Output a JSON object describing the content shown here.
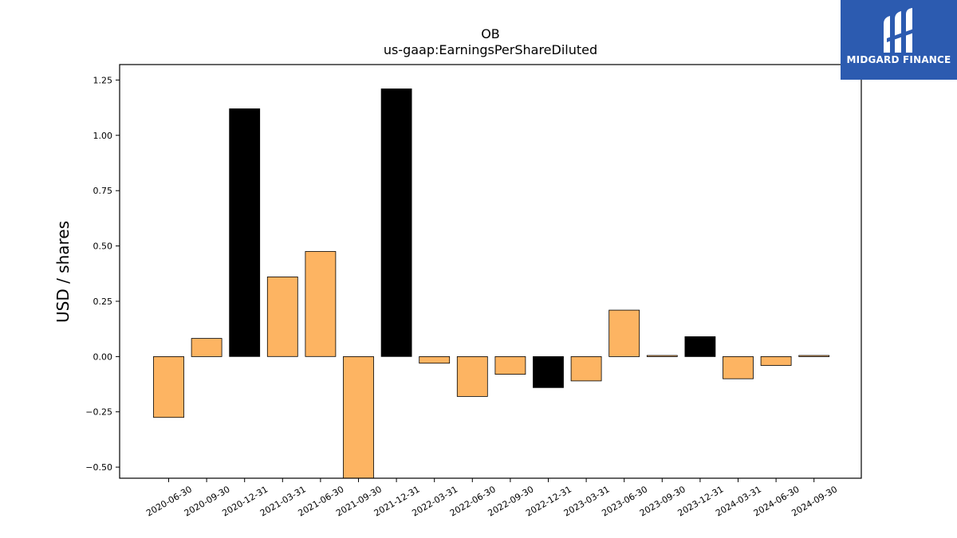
{
  "chart_data": {
    "type": "bar",
    "title": "OB",
    "subtitle": "us-gaap:EarningsPerShareDiluted",
    "xlabel": "",
    "ylabel": "USD / shares",
    "ylim": [
      -0.55,
      1.32
    ],
    "yticks": [
      -0.5,
      -0.25,
      0.0,
      0.25,
      0.5,
      0.75,
      1.0,
      1.25
    ],
    "ytick_labels": [
      "−0.50",
      "−0.25",
      "0.00",
      "0.25",
      "0.50",
      "0.75",
      "1.00",
      "1.25"
    ],
    "grid": false,
    "categories": [
      "2020-06-30",
      "2020-09-30",
      "2020-12-31",
      "2021-03-31",
      "2021-06-30",
      "2021-09-30",
      "2021-12-31",
      "2022-03-31",
      "2022-06-30",
      "2022-09-30",
      "2022-12-31",
      "2023-03-31",
      "2023-06-30",
      "2023-09-30",
      "2023-12-31",
      "2024-03-31",
      "2024-06-30",
      "2024-09-30"
    ],
    "values": [
      -0.275,
      0.082,
      1.12,
      0.36,
      0.475,
      -0.56,
      1.21,
      -0.03,
      -0.18,
      -0.08,
      -0.14,
      -0.11,
      0.21,
      0.005,
      0.09,
      -0.1,
      -0.04,
      0.005
    ],
    "bar_colors": [
      "#fdb462",
      "#fdb462",
      "#000000",
      "#fdb462",
      "#fdb462",
      "#fdb462",
      "#000000",
      "#fdb462",
      "#fdb462",
      "#fdb462",
      "#000000",
      "#fdb462",
      "#fdb462",
      "#fdb462",
      "#000000",
      "#fdb462",
      "#fdb462",
      "#fdb462"
    ]
  },
  "logo": {
    "text": "MIDGARD FINANCE",
    "background": "#2c5bb0",
    "foreground": "#ffffff"
  },
  "colors": {
    "quarterly_bar": "#fdb462",
    "annual_bar": "#000000",
    "axis": "#000000"
  }
}
